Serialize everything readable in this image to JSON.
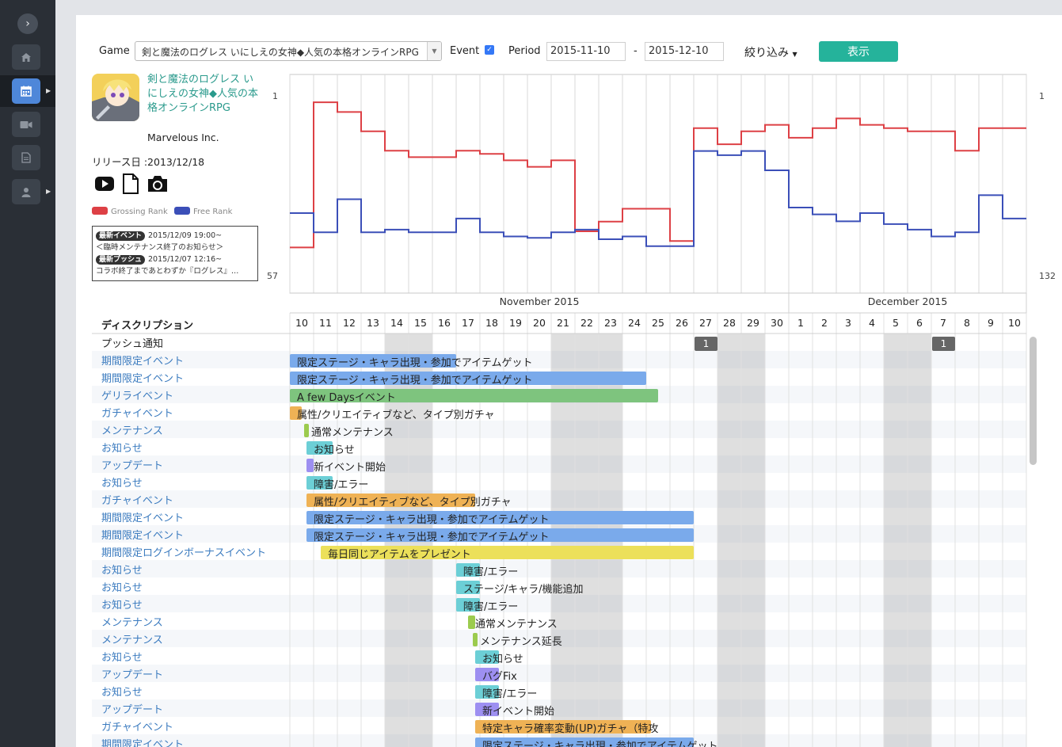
{
  "sidebar": {
    "toggle_icon": "chevron-right-icon",
    "items": [
      {
        "name": "home",
        "icon": "home-icon"
      },
      {
        "name": "calendar",
        "icon": "calendar-icon",
        "active": true
      },
      {
        "name": "video",
        "icon": "video-camera-icon"
      },
      {
        "name": "document",
        "icon": "document-icon"
      },
      {
        "name": "user",
        "icon": "user-icon"
      }
    ]
  },
  "controls": {
    "game_label": "Game",
    "game_value": "剣と魔法のログレス いにしえの女神◆人気の本格オンラインRPG",
    "event_label": "Event",
    "event_checked": true,
    "period_label": "Period",
    "date_from": "2015-11-10",
    "date_sep": "-",
    "date_to": "2015-12-10",
    "filter_label": "絞り込み",
    "show_button": "表示"
  },
  "app": {
    "name": "剣と魔法のログレス いにしえの女神◆人気の本格オンラインRPG",
    "publisher": "Marvelous Inc.",
    "release": "リリース日 :2013/12/18"
  },
  "legend": {
    "grossing": "Grossing Rank",
    "free": "Free Rank",
    "grossing_color": "#dd4045",
    "free_color": "#3b4fb8"
  },
  "news": {
    "event_tag": "最新イベント",
    "event_time": "2015/12/09 19:00~",
    "event_text": "＜臨時メンテナンス終了のお知らせ＞",
    "push_tag": "最新プッシュ",
    "push_time": "2015/12/07 12:16~",
    "push_text": "コラボ終了まであとわずか『ログレス』…"
  },
  "chart_data": {
    "type": "line",
    "x_categories": [
      "10",
      "11",
      "12",
      "13",
      "14",
      "15",
      "16",
      "17",
      "18",
      "19",
      "20",
      "21",
      "22",
      "23",
      "24",
      "25",
      "26",
      "27",
      "28",
      "29",
      "30",
      "1",
      "2",
      "3",
      "4",
      "5",
      "6",
      "7",
      "8",
      "9",
      "10"
    ],
    "weekend_indexes": [
      4,
      5,
      11,
      12,
      13,
      18,
      19,
      25,
      26
    ],
    "months": [
      {
        "label": "November 2015",
        "from": 0,
        "to": 20
      },
      {
        "label": "December 2015",
        "from": 21,
        "to": 30
      }
    ],
    "left_axis": {
      "top": "1",
      "bottom": "57"
    },
    "right_axis": {
      "top": "1",
      "bottom": "132"
    },
    "series": [
      {
        "name": "Grossing Rank",
        "color": "#dd4045",
        "values": [
          48,
          3,
          6,
          12,
          18,
          20,
          20,
          18,
          19,
          21,
          23,
          21,
          43,
          40,
          36,
          36,
          46,
          11,
          16,
          12,
          10,
          14,
          11,
          8,
          10,
          11,
          12,
          12,
          18,
          11,
          11
        ]
      },
      {
        "name": "Free Rank",
        "color": "#3b4fb8",
        "values": [
          86,
          100,
          76,
          100,
          98,
          100,
          100,
          90,
          100,
          103,
          104,
          100,
          98,
          105,
          103,
          110,
          110,
          41,
          44,
          41,
          55,
          82,
          87,
          92,
          86,
          94,
          98,
          103,
          100,
          73,
          90
        ]
      }
    ]
  },
  "timeline": {
    "header": "ディスクリプション",
    "push_label": "プッシュ通知",
    "pushes": [
      {
        "day_index": 17,
        "count": "1"
      },
      {
        "day_index": 27,
        "count": "1"
      }
    ],
    "rows": [
      {
        "label": "期間限定イベント",
        "text": "限定ステージ・キャラ出現・参加でアイテムゲット",
        "color": "#7aaaeb",
        "start": 0,
        "end": 7
      },
      {
        "label": "期間限定イベント",
        "text": "限定ステージ・キャラ出現・参加でアイテムゲット",
        "color": "#7aaaeb",
        "start": 0,
        "end": 15
      },
      {
        "label": "ゲリライベント",
        "text": "A few Daysイベント",
        "color": "#7ec47e",
        "start": 0,
        "end": 15.5
      },
      {
        "label": "ガチャイベント",
        "text": "属性/クリエイティブなど、タイプ別ガチャ",
        "color": "#efb255",
        "start": 0,
        "end": 0.5
      },
      {
        "label": "メンテナンス",
        "text": "通常メンテナンス",
        "color": "#9ccb4e",
        "start": 0.6,
        "end": 0.8
      },
      {
        "label": "お知らせ",
        "text": "お知らせ",
        "color": "#6ccfd6",
        "start": 0.7,
        "end": 1.8
      },
      {
        "label": "アップデート",
        "text": "新イベント開始",
        "color": "#9d8ff1",
        "start": 0.7,
        "end": 1
      },
      {
        "label": "お知らせ",
        "text": "障害/エラー",
        "color": "#6ccfd6",
        "start": 0.7,
        "end": 1.8
      },
      {
        "label": "ガチャイベント",
        "text": "属性/クリエイティブなど、タイプ別ガチャ",
        "color": "#efb255",
        "start": 0.7,
        "end": 7.8
      },
      {
        "label": "期間限定イベント",
        "text": "限定ステージ・キャラ出現・参加でアイテムゲット",
        "color": "#7aaaeb",
        "start": 0.7,
        "end": 17
      },
      {
        "label": "期間限定イベント",
        "text": "限定ステージ・キャラ出現・参加でアイテムゲット",
        "color": "#7aaaeb",
        "start": 0.7,
        "end": 17
      },
      {
        "label": "期間限定ログインボーナスイベント",
        "text": "毎日同じアイテムをプレゼント",
        "color": "#ece05a",
        "start": 1.3,
        "end": 17
      },
      {
        "label": "お知らせ",
        "text": "障害/エラー",
        "color": "#6ccfd6",
        "start": 7,
        "end": 8
      },
      {
        "label": "お知らせ",
        "text": "ステージ/キャラ/機能追加",
        "color": "#6ccfd6",
        "start": 7,
        "end": 8
      },
      {
        "label": "お知らせ",
        "text": "障害/エラー",
        "color": "#6ccfd6",
        "start": 7,
        "end": 8
      },
      {
        "label": "メンテナンス",
        "text": "通常メンテナンス",
        "color": "#9ccb4e",
        "start": 7.5,
        "end": 7.8
      },
      {
        "label": "メンテナンス",
        "text": "メンテナンス延長",
        "color": "#9ccb4e",
        "start": 7.7,
        "end": 7.9
      },
      {
        "label": "お知らせ",
        "text": "お知らせ",
        "color": "#6ccfd6",
        "start": 7.8,
        "end": 8.8
      },
      {
        "label": "アップデート",
        "text": "バグFix",
        "color": "#9d8ff1",
        "start": 7.8,
        "end": 8.8
      },
      {
        "label": "お知らせ",
        "text": "障害/エラー",
        "color": "#6ccfd6",
        "start": 7.8,
        "end": 8.8
      },
      {
        "label": "アップデート",
        "text": "新イベント開始",
        "color": "#9d8ff1",
        "start": 7.8,
        "end": 8.8
      },
      {
        "label": "ガチャイベント",
        "text": "特定キャラ確率変動(UP)ガチャ（特攻",
        "color": "#efb255",
        "start": 7.8,
        "end": 15.2
      },
      {
        "label": "期間限定イベント",
        "text": "限定ステージ・キャラ出現・参加でアイテムゲット",
        "color": "#7aaaeb",
        "start": 7.8,
        "end": 17
      }
    ]
  }
}
